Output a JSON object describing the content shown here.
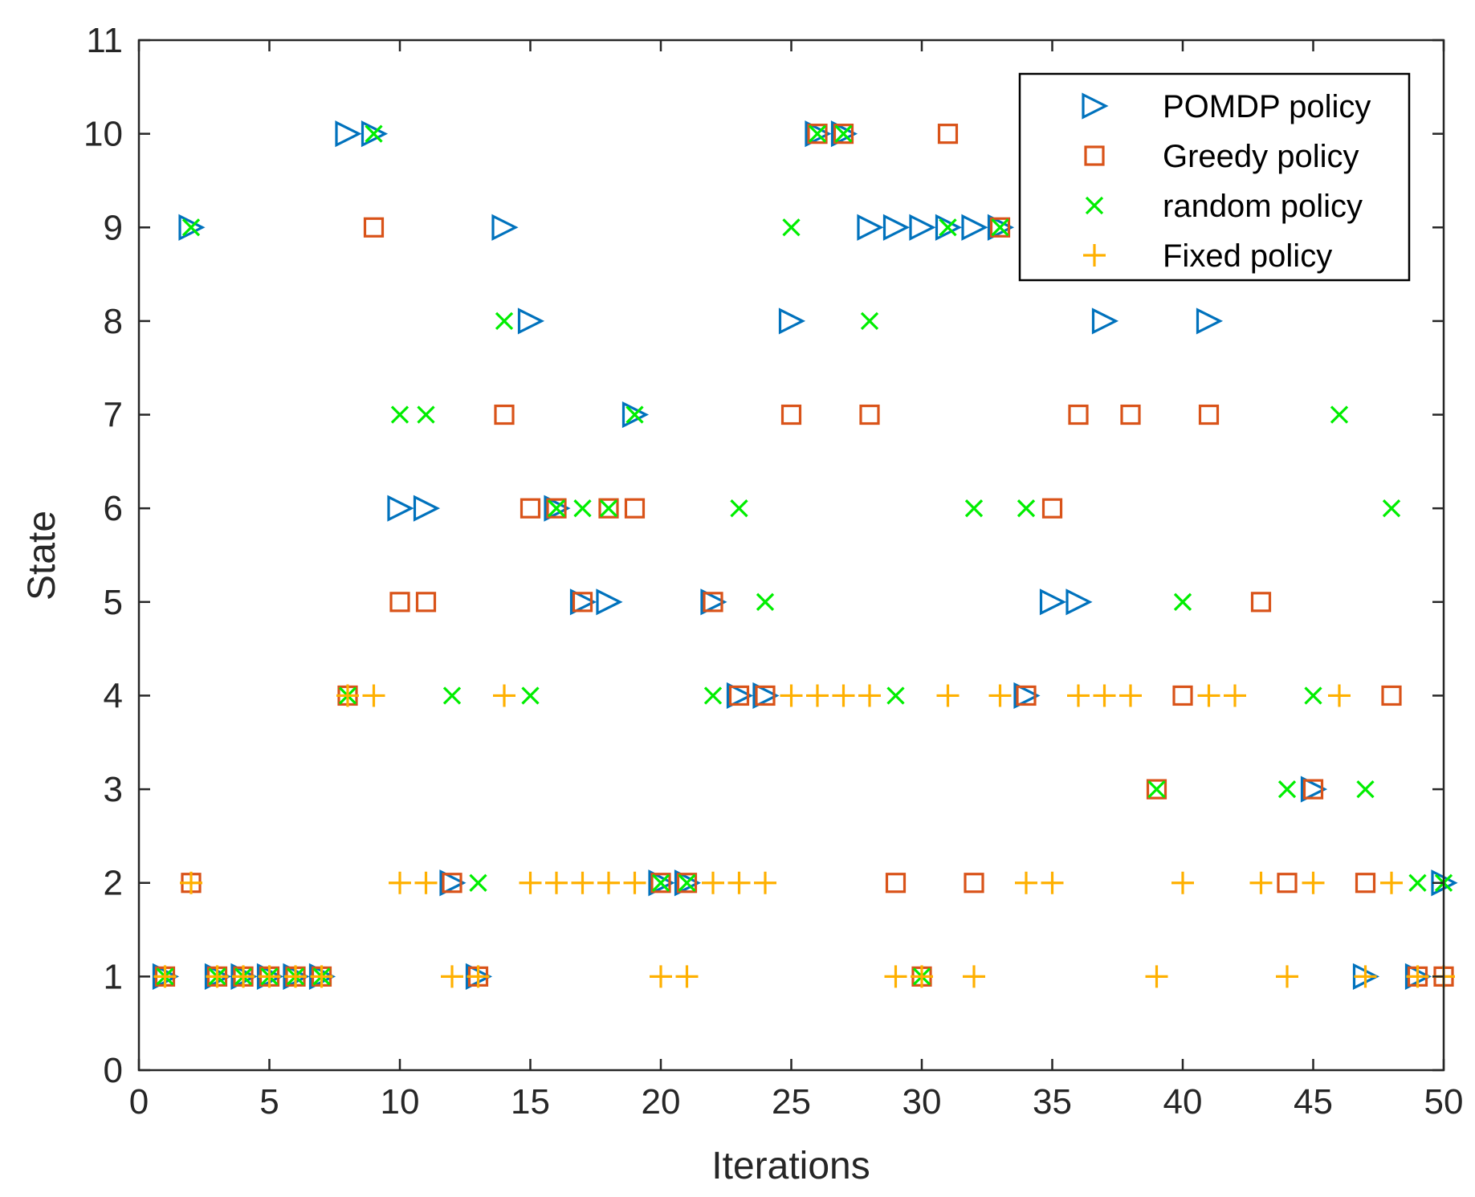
{
  "chart_data": {
    "type": "scatter",
    "title": "",
    "xlabel": "Iterations",
    "ylabel": "State",
    "xlim": [
      0,
      50
    ],
    "ylim": [
      0,
      11
    ],
    "xticks": [
      "0",
      "5",
      "10",
      "15",
      "20",
      "25",
      "30",
      "35",
      "40",
      "45",
      "50"
    ],
    "yticks": [
      "0",
      "1",
      "2",
      "3",
      "4",
      "5",
      "6",
      "7",
      "8",
      "9",
      "10",
      "11"
    ],
    "grid": false,
    "legend_position": "top-right",
    "series": [
      {
        "name": "POMDP policy",
        "marker": "triangle-right",
        "color": "#0072BD",
        "x": [
          1,
          2,
          3,
          4,
          5,
          6,
          7,
          8,
          9,
          10,
          11,
          12,
          13,
          14,
          15,
          16,
          17,
          18,
          19,
          20,
          21,
          22,
          23,
          24,
          25,
          26,
          27,
          28,
          29,
          30,
          31,
          32,
          33,
          34,
          35,
          36,
          37,
          41,
          45,
          47,
          49,
          50
        ],
        "y": [
          1,
          9,
          1,
          1,
          1,
          1,
          1,
          10,
          10,
          6,
          6,
          2,
          1,
          9,
          8,
          6,
          5,
          5,
          7,
          2,
          2,
          5,
          4,
          4,
          8,
          10,
          10,
          9,
          9,
          9,
          9,
          9,
          9,
          4,
          5,
          5,
          8,
          8,
          3,
          1,
          1,
          2
        ]
      },
      {
        "name": "Greedy policy",
        "marker": "square",
        "color": "#D95319",
        "x": [
          1,
          2,
          3,
          4,
          5,
          6,
          7,
          8,
          9,
          10,
          11,
          12,
          13,
          14,
          15,
          16,
          17,
          18,
          19,
          20,
          21,
          22,
          23,
          24,
          25,
          26,
          27,
          28,
          29,
          30,
          31,
          32,
          33,
          34,
          35,
          36,
          38,
          39,
          40,
          41,
          43,
          44,
          45,
          47,
          48,
          49,
          50
        ],
        "y": [
          1,
          2,
          1,
          1,
          1,
          1,
          1,
          4,
          9,
          5,
          5,
          2,
          1,
          7,
          6,
          6,
          5,
          6,
          6,
          2,
          2,
          5,
          4,
          4,
          7,
          10,
          10,
          7,
          2,
          1,
          10,
          2,
          9,
          4,
          6,
          7,
          7,
          3,
          4,
          7,
          5,
          2,
          3,
          2,
          4,
          1,
          1
        ]
      },
      {
        "name": "random policy",
        "marker": "x",
        "color": "#00EE00",
        "x": [
          1,
          2,
          3,
          4,
          5,
          6,
          7,
          8,
          9,
          10,
          11,
          12,
          13,
          14,
          15,
          16,
          17,
          18,
          19,
          20,
          21,
          22,
          23,
          24,
          25,
          26,
          27,
          28,
          29,
          30,
          31,
          32,
          33,
          34,
          39,
          40,
          44,
          45,
          46,
          47,
          48,
          49,
          50
        ],
        "y": [
          1,
          9,
          1,
          1,
          1,
          1,
          1,
          4,
          10,
          7,
          7,
          4,
          2,
          8,
          4,
          6,
          6,
          6,
          7,
          2,
          2,
          4,
          6,
          5,
          9,
          10,
          10,
          8,
          4,
          1,
          9,
          6,
          9,
          6,
          3,
          5,
          3,
          4,
          7,
          3,
          6,
          2,
          2
        ]
      },
      {
        "name": "Fixed policy",
        "marker": "plus",
        "color": "#FFB000",
        "x": [
          1,
          2,
          3,
          4,
          5,
          6,
          7,
          8,
          9,
          10,
          11,
          12,
          13,
          14,
          15,
          16,
          17,
          18,
          19,
          20,
          21,
          22,
          23,
          24,
          25,
          26,
          27,
          28,
          29,
          30,
          31,
          32,
          33,
          34,
          35,
          36,
          37,
          38,
          39,
          40,
          41,
          42,
          43,
          44,
          45,
          46,
          47,
          48,
          49,
          50
        ],
        "y": [
          1,
          2,
          1,
          1,
          1,
          1,
          1,
          4,
          4,
          2,
          2,
          1,
          1,
          4,
          2,
          2,
          2,
          2,
          2,
          1,
          1,
          2,
          2,
          2,
          4,
          4,
          4,
          4,
          1,
          1,
          4,
          1,
          4,
          2,
          2,
          4,
          4,
          4,
          1,
          2,
          4,
          4,
          2,
          1,
          2,
          4,
          1,
          2,
          1,
          1
        ]
      }
    ]
  }
}
